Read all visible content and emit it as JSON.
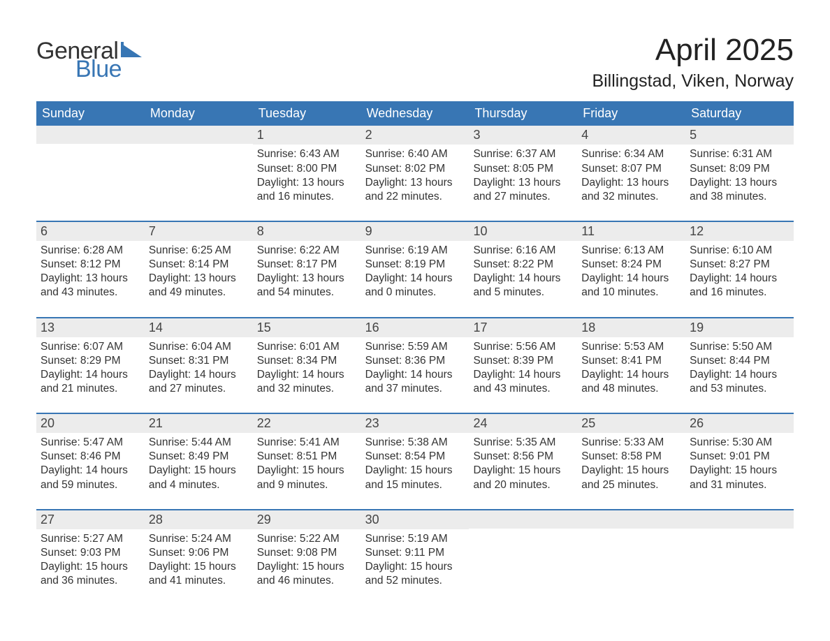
{
  "logo": {
    "text1": "General",
    "text2": "Blue",
    "text1_color": "#333333",
    "text2_color": "#3876b4",
    "flag_color": "#3876b4"
  },
  "title": "April 2025",
  "location": "Billingstad, Viken, Norway",
  "colors": {
    "header_bg": "#3876b4",
    "header_fg": "#ffffff",
    "daynum_bg": "#ececec",
    "daynum_fg": "#444444",
    "body_fg": "#333333",
    "week_border": "#3876b4",
    "page_bg": "#ffffff"
  },
  "day_headers": [
    "Sunday",
    "Monday",
    "Tuesday",
    "Wednesday",
    "Thursday",
    "Friday",
    "Saturday"
  ],
  "labels": {
    "sunrise": "Sunrise:",
    "sunset": "Sunset:",
    "daylight": "Daylight:"
  },
  "weeks": [
    [
      {
        "empty": true
      },
      {
        "empty": true
      },
      {
        "num": "1",
        "sunrise": "6:43 AM",
        "sunset": "8:00 PM",
        "daylight": "13 hours and 16 minutes."
      },
      {
        "num": "2",
        "sunrise": "6:40 AM",
        "sunset": "8:02 PM",
        "daylight": "13 hours and 22 minutes."
      },
      {
        "num": "3",
        "sunrise": "6:37 AM",
        "sunset": "8:05 PM",
        "daylight": "13 hours and 27 minutes."
      },
      {
        "num": "4",
        "sunrise": "6:34 AM",
        "sunset": "8:07 PM",
        "daylight": "13 hours and 32 minutes."
      },
      {
        "num": "5",
        "sunrise": "6:31 AM",
        "sunset": "8:09 PM",
        "daylight": "13 hours and 38 minutes."
      }
    ],
    [
      {
        "num": "6",
        "sunrise": "6:28 AM",
        "sunset": "8:12 PM",
        "daylight": "13 hours and 43 minutes."
      },
      {
        "num": "7",
        "sunrise": "6:25 AM",
        "sunset": "8:14 PM",
        "daylight": "13 hours and 49 minutes."
      },
      {
        "num": "8",
        "sunrise": "6:22 AM",
        "sunset": "8:17 PM",
        "daylight": "13 hours and 54 minutes."
      },
      {
        "num": "9",
        "sunrise": "6:19 AM",
        "sunset": "8:19 PM",
        "daylight": "14 hours and 0 minutes."
      },
      {
        "num": "10",
        "sunrise": "6:16 AM",
        "sunset": "8:22 PM",
        "daylight": "14 hours and 5 minutes."
      },
      {
        "num": "11",
        "sunrise": "6:13 AM",
        "sunset": "8:24 PM",
        "daylight": "14 hours and 10 minutes."
      },
      {
        "num": "12",
        "sunrise": "6:10 AM",
        "sunset": "8:27 PM",
        "daylight": "14 hours and 16 minutes."
      }
    ],
    [
      {
        "num": "13",
        "sunrise": "6:07 AM",
        "sunset": "8:29 PM",
        "daylight": "14 hours and 21 minutes."
      },
      {
        "num": "14",
        "sunrise": "6:04 AM",
        "sunset": "8:31 PM",
        "daylight": "14 hours and 27 minutes."
      },
      {
        "num": "15",
        "sunrise": "6:01 AM",
        "sunset": "8:34 PM",
        "daylight": "14 hours and 32 minutes."
      },
      {
        "num": "16",
        "sunrise": "5:59 AM",
        "sunset": "8:36 PM",
        "daylight": "14 hours and 37 minutes."
      },
      {
        "num": "17",
        "sunrise": "5:56 AM",
        "sunset": "8:39 PM",
        "daylight": "14 hours and 43 minutes."
      },
      {
        "num": "18",
        "sunrise": "5:53 AM",
        "sunset": "8:41 PM",
        "daylight": "14 hours and 48 minutes."
      },
      {
        "num": "19",
        "sunrise": "5:50 AM",
        "sunset": "8:44 PM",
        "daylight": "14 hours and 53 minutes."
      }
    ],
    [
      {
        "num": "20",
        "sunrise": "5:47 AM",
        "sunset": "8:46 PM",
        "daylight": "14 hours and 59 minutes."
      },
      {
        "num": "21",
        "sunrise": "5:44 AM",
        "sunset": "8:49 PM",
        "daylight": "15 hours and 4 minutes."
      },
      {
        "num": "22",
        "sunrise": "5:41 AM",
        "sunset": "8:51 PM",
        "daylight": "15 hours and 9 minutes."
      },
      {
        "num": "23",
        "sunrise": "5:38 AM",
        "sunset": "8:54 PM",
        "daylight": "15 hours and 15 minutes."
      },
      {
        "num": "24",
        "sunrise": "5:35 AM",
        "sunset": "8:56 PM",
        "daylight": "15 hours and 20 minutes."
      },
      {
        "num": "25",
        "sunrise": "5:33 AM",
        "sunset": "8:58 PM",
        "daylight": "15 hours and 25 minutes."
      },
      {
        "num": "26",
        "sunrise": "5:30 AM",
        "sunset": "9:01 PM",
        "daylight": "15 hours and 31 minutes."
      }
    ],
    [
      {
        "num": "27",
        "sunrise": "5:27 AM",
        "sunset": "9:03 PM",
        "daylight": "15 hours and 36 minutes."
      },
      {
        "num": "28",
        "sunrise": "5:24 AM",
        "sunset": "9:06 PM",
        "daylight": "15 hours and 41 minutes."
      },
      {
        "num": "29",
        "sunrise": "5:22 AM",
        "sunset": "9:08 PM",
        "daylight": "15 hours and 46 minutes."
      },
      {
        "num": "30",
        "sunrise": "5:19 AM",
        "sunset": "9:11 PM",
        "daylight": "15 hours and 52 minutes."
      },
      {
        "empty": true
      },
      {
        "empty": true
      },
      {
        "empty": true
      }
    ]
  ]
}
